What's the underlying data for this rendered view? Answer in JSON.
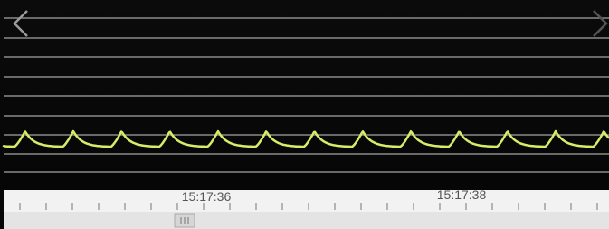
{
  "timeline": {
    "labels": [
      "15:17:36",
      "15:17:38"
    ]
  }
}
